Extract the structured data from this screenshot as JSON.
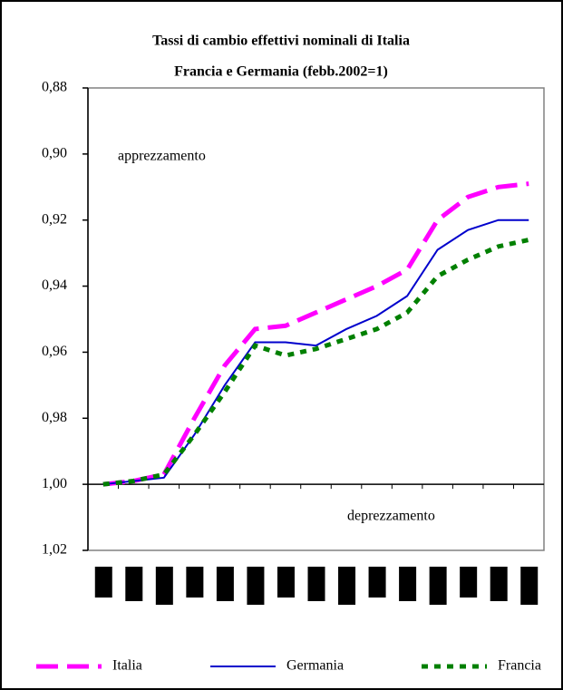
{
  "chart_data": {
    "type": "line",
    "title": [
      "Tassi di cambio effettivi nominali di Italia",
      "Francia e Germania (febb.2002=1)"
    ],
    "annotations": [
      "apprezzamento",
      "deprezzamento"
    ],
    "categories": [
      null,
      null,
      null,
      null,
      null,
      null,
      null,
      null,
      null,
      null,
      null,
      null,
      null,
      null,
      null
    ],
    "series": [
      {
        "name": "Italia",
        "color": "#ff00ff",
        "style": "dashed",
        "values": [
          1.0,
          0.999,
          0.997,
          0.98,
          0.964,
          0.953,
          0.952,
          0.948,
          0.944,
          0.94,
          0.935,
          0.92,
          0.913,
          0.91,
          0.909
        ]
      },
      {
        "name": "Germania",
        "color": "#0000cc",
        "style": "solid",
        "values": [
          1.0,
          0.999,
          0.998,
          0.985,
          0.97,
          0.957,
          0.957,
          0.958,
          0.953,
          0.949,
          0.943,
          0.929,
          0.923,
          0.92,
          0.92
        ]
      },
      {
        "name": "Francia",
        "color": "#008000",
        "style": "dotted",
        "values": [
          1.0,
          0.999,
          0.997,
          0.985,
          0.972,
          0.958,
          0.961,
          0.959,
          0.956,
          0.953,
          0.948,
          0.937,
          0.932,
          0.928,
          0.926
        ]
      }
    ],
    "ylim": [
      0.88,
      1.02
    ],
    "y_inverted": true,
    "xaxis_at": 1,
    "yticks": [
      {
        "value": 0.88,
        "label": "0,88"
      },
      {
        "value": 0.9,
        "label": "0,90"
      },
      {
        "value": 0.92,
        "label": "0,92"
      },
      {
        "value": 0.94,
        "label": "0,94"
      },
      {
        "value": 0.96,
        "label": "0,96"
      },
      {
        "value": 0.98,
        "label": "0,98"
      },
      {
        "value": 1.0,
        "label": "1,00"
      },
      {
        "value": 1.02,
        "label": "1,02"
      }
    ],
    "grid": false,
    "legend": "bottom"
  }
}
